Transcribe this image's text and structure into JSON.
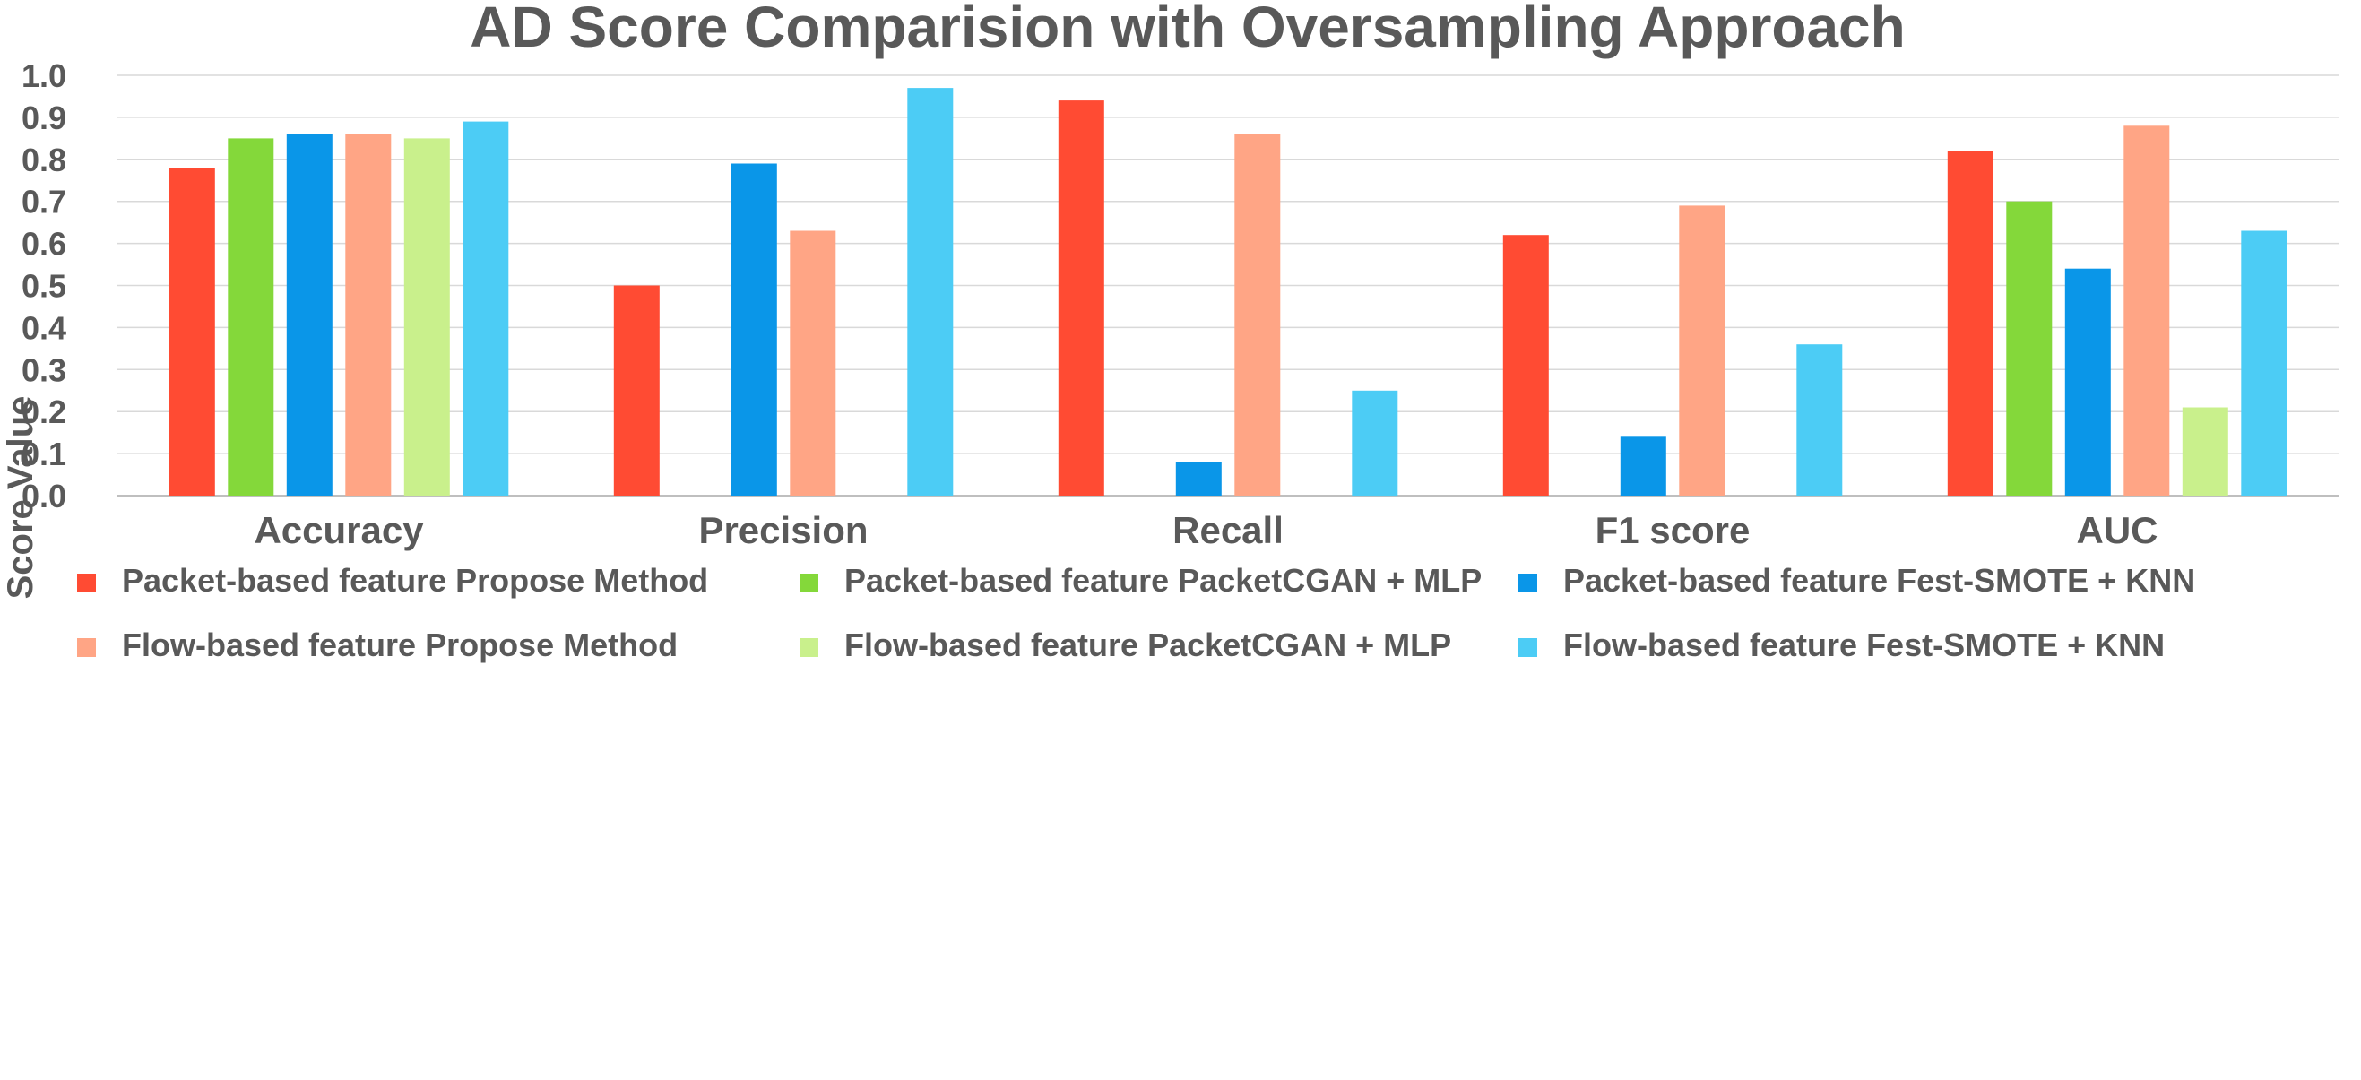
{
  "chart_data": {
    "type": "bar",
    "title": "AD Score Comparision with Oversampling Approach",
    "xlabel": "",
    "ylabel": "Score Value",
    "ylim": [
      0,
      1.0
    ],
    "yticks": [
      "0.0",
      "0.1",
      "0.2",
      "0.3",
      "0.4",
      "0.5",
      "0.6",
      "0.7",
      "0.8",
      "0.9",
      "1.0"
    ],
    "grid": true,
    "legend_position": "bottom",
    "categories": [
      "Accuracy",
      "Precision",
      "Recall",
      "F1 score",
      "AUC"
    ],
    "series": [
      {
        "name": "Packet-based feature Propose Method",
        "color": "#FF4B33",
        "values": [
          0.78,
          0.5,
          0.94,
          0.62,
          0.82
        ]
      },
      {
        "name": "Packet-based feature PacketCGAN + MLP",
        "color": "#84D83A",
        "values": [
          0.85,
          0,
          0,
          0,
          0.7
        ]
      },
      {
        "name": "Packet-based feature Fest-SMOTE + KNN",
        "color": "#0A96E8",
        "values": [
          0.86,
          0.79,
          0.08,
          0.14,
          0.54
        ]
      },
      {
        "name": "Flow-based feature Propose Method",
        "color": "#FFA585",
        "values": [
          0.86,
          0.63,
          0.86,
          0.69,
          0.88
        ]
      },
      {
        "name": "Flow-based feature PacketCGAN + MLP",
        "color": "#C9F08C",
        "values": [
          0.85,
          0,
          0,
          0,
          0.21
        ]
      },
      {
        "name": "Flow-based feature Fest-SMOTE + KNN",
        "color": "#4CCCF5",
        "values": [
          0.89,
          0.97,
          0.25,
          0.36,
          0.63
        ]
      }
    ]
  }
}
